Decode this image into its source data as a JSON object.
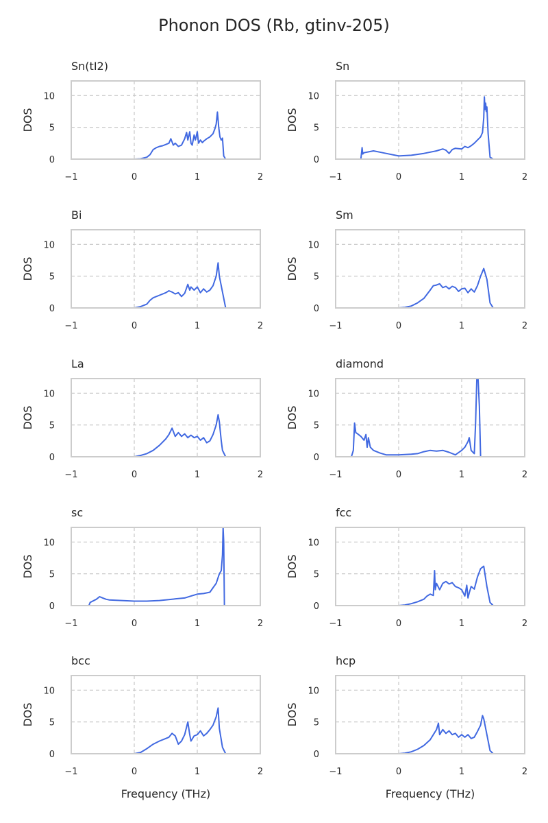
{
  "figure_title": "Phonon DOS (Rb, gtinv-205)",
  "colors": {
    "line": "#4169e1",
    "frame": "#cccccc",
    "grid": "#c8c8c8",
    "text": "#262626"
  },
  "chart_data": [
    {
      "type": "line",
      "title": "Sn(tI2)",
      "xlabel": "",
      "ylabel": "DOS",
      "xlim": [
        -1,
        2
      ],
      "ylim": [
        0,
        12.3
      ],
      "xticks": [
        -1,
        0,
        1,
        2
      ],
      "yticks": [
        0,
        5,
        10
      ],
      "grid": true,
      "x": [
        -0.9,
        0.0,
        0.1,
        0.2,
        0.25,
        0.3,
        0.35,
        0.4,
        0.45,
        0.5,
        0.55,
        0.58,
        0.62,
        0.65,
        0.7,
        0.75,
        0.8,
        0.83,
        0.85,
        0.88,
        0.9,
        0.92,
        0.95,
        0.97,
        1.0,
        1.02,
        1.05,
        1.08,
        1.1,
        1.15,
        1.2,
        1.25,
        1.28,
        1.3,
        1.32,
        1.34,
        1.36,
        1.38,
        1.4,
        1.42,
        1.45,
        1.5
      ],
      "y": [
        0,
        0,
        0.05,
        0.3,
        0.7,
        1.5,
        1.8,
        2.0,
        2.1,
        2.3,
        2.5,
        3.2,
        2.2,
        2.5,
        2.0,
        2.2,
        3.2,
        4.2,
        3.0,
        4.3,
        2.5,
        2.2,
        3.8,
        3.0,
        4.3,
        2.5,
        3.0,
        2.6,
        2.8,
        3.2,
        3.5,
        4.0,
        4.8,
        5.5,
        7.4,
        5.0,
        3.5,
        3.0,
        3.3,
        0.5,
        0,
        0
      ]
    },
    {
      "type": "line",
      "title": "Sn",
      "xlabel": "",
      "ylabel": "DOS",
      "xlim": [
        -1,
        2
      ],
      "ylim": [
        0,
        12.3
      ],
      "xticks": [
        -1,
        0,
        1,
        2
      ],
      "yticks": [
        0,
        5,
        10
      ],
      "grid": true,
      "x": [
        -0.6,
        -0.58,
        -0.57,
        -0.55,
        -0.4,
        -0.3,
        -0.2,
        0.0,
        0.2,
        0.4,
        0.6,
        0.7,
        0.75,
        0.8,
        0.85,
        0.9,
        1.0,
        1.05,
        1.1,
        1.15,
        1.2,
        1.25,
        1.3,
        1.33,
        1.35,
        1.36,
        1.37,
        1.38,
        1.39,
        1.4,
        1.42,
        1.45,
        1.5
      ],
      "y": [
        0,
        1.8,
        0.8,
        1.0,
        1.3,
        1.1,
        0.9,
        0.5,
        0.6,
        0.9,
        1.3,
        1.6,
        1.4,
        0.9,
        1.5,
        1.7,
        1.6,
        2.0,
        1.8,
        2.1,
        2.5,
        3.0,
        3.5,
        4.2,
        6.5,
        9.8,
        7.8,
        8.8,
        7.5,
        8.2,
        4.0,
        0.3,
        0
      ]
    },
    {
      "type": "line",
      "title": "Bi",
      "xlabel": "",
      "ylabel": "DOS",
      "xlim": [
        -1,
        2
      ],
      "ylim": [
        0,
        12.3
      ],
      "xticks": [
        -1,
        0,
        1,
        2
      ],
      "yticks": [
        0,
        5,
        10
      ],
      "grid": true,
      "x": [
        -0.1,
        0.0,
        0.1,
        0.2,
        0.25,
        0.3,
        0.4,
        0.5,
        0.55,
        0.6,
        0.65,
        0.7,
        0.75,
        0.8,
        0.85,
        0.88,
        0.9,
        0.95,
        1.0,
        1.05,
        1.1,
        1.15,
        1.2,
        1.25,
        1.3,
        1.33,
        1.35,
        1.4,
        1.45,
        1.5
      ],
      "y": [
        0,
        0,
        0.2,
        0.6,
        1.2,
        1.6,
        2.0,
        2.4,
        2.7,
        2.5,
        2.2,
        2.4,
        1.8,
        2.3,
        3.7,
        2.8,
        3.3,
        2.8,
        3.3,
        2.4,
        3.0,
        2.5,
        2.8,
        3.5,
        5.0,
        7.1,
        5.0,
        2.5,
        0,
        0
      ]
    },
    {
      "type": "line",
      "title": "Sm",
      "xlabel": "",
      "ylabel": "DOS",
      "xlim": [
        -1,
        2
      ],
      "ylim": [
        0,
        12.3
      ],
      "xticks": [
        -1,
        0,
        1,
        2
      ],
      "yticks": [
        0,
        5,
        10
      ],
      "grid": true,
      "x": [
        0.0,
        0.1,
        0.2,
        0.3,
        0.4,
        0.5,
        0.55,
        0.6,
        0.65,
        0.7,
        0.75,
        0.8,
        0.85,
        0.9,
        0.95,
        1.0,
        1.05,
        1.1,
        1.15,
        1.2,
        1.25,
        1.3,
        1.35,
        1.4,
        1.45,
        1.5
      ],
      "y": [
        0,
        0.1,
        0.3,
        0.8,
        1.5,
        2.8,
        3.5,
        3.6,
        3.8,
        3.2,
        3.4,
        3.0,
        3.4,
        3.2,
        2.6,
        3.0,
        3.1,
        2.4,
        3.0,
        2.5,
        3.5,
        5.0,
        6.2,
        4.5,
        0.8,
        0
      ]
    },
    {
      "type": "line",
      "title": "La",
      "xlabel": "",
      "ylabel": "DOS",
      "xlim": [
        -1,
        2
      ],
      "ylim": [
        0,
        12.3
      ],
      "xticks": [
        -1,
        0,
        1,
        2
      ],
      "yticks": [
        0,
        5,
        10
      ],
      "grid": true,
      "x": [
        -0.05,
        0.0,
        0.1,
        0.2,
        0.3,
        0.4,
        0.5,
        0.55,
        0.6,
        0.65,
        0.7,
        0.75,
        0.8,
        0.85,
        0.9,
        0.95,
        1.0,
        1.05,
        1.1,
        1.15,
        1.2,
        1.25,
        1.3,
        1.33,
        1.35,
        1.38,
        1.4,
        1.45,
        1.5
      ],
      "y": [
        0,
        0,
        0.2,
        0.5,
        1.0,
        1.8,
        2.8,
        3.5,
        4.5,
        3.2,
        3.8,
        3.2,
        3.6,
        3.0,
        3.4,
        3.0,
        3.2,
        2.6,
        3.0,
        2.2,
        2.5,
        3.5,
        5.0,
        6.6,
        5.5,
        2.5,
        1.0,
        0,
        0
      ]
    },
    {
      "type": "line",
      "title": "diamond",
      "xlabel": "",
      "ylabel": "DOS",
      "xlim": [
        -1,
        2
      ],
      "ylim": [
        0,
        12.3
      ],
      "xticks": [
        -1,
        0,
        1,
        2
      ],
      "yticks": [
        0,
        5,
        10
      ],
      "grid": true,
      "x": [
        -0.9,
        -0.75,
        -0.72,
        -0.7,
        -0.68,
        -0.65,
        -0.6,
        -0.55,
        -0.52,
        -0.5,
        -0.48,
        -0.45,
        -0.4,
        -0.3,
        -0.2,
        0.0,
        0.2,
        0.3,
        0.4,
        0.5,
        0.6,
        0.7,
        0.8,
        0.9,
        1.0,
        1.05,
        1.1,
        1.12,
        1.15,
        1.2,
        1.22,
        1.24,
        1.26,
        1.28,
        1.3,
        1.5
      ],
      "y": [
        0,
        0,
        1.0,
        5.3,
        3.8,
        3.6,
        3.2,
        2.6,
        3.5,
        1.5,
        3.0,
        1.5,
        1.0,
        0.6,
        0.3,
        0.3,
        0.4,
        0.5,
        0.8,
        1.0,
        0.9,
        1.0,
        0.7,
        0.3,
        1.0,
        1.5,
        2.4,
        3.0,
        1.0,
        0.5,
        5.0,
        12.3,
        12.3,
        8.0,
        0,
        0
      ]
    },
    {
      "type": "line",
      "title": "sc",
      "xlabel": "",
      "ylabel": "DOS",
      "xlim": [
        -1,
        2
      ],
      "ylim": [
        0,
        12.3
      ],
      "xticks": [
        -1,
        0,
        1,
        2
      ],
      "yticks": [
        0,
        5,
        10
      ],
      "grid": true,
      "x": [
        -0.72,
        -0.7,
        -0.6,
        -0.55,
        -0.5,
        -0.45,
        -0.4,
        -0.2,
        0.0,
        0.2,
        0.4,
        0.6,
        0.8,
        0.9,
        1.0,
        1.1,
        1.2,
        1.25,
        1.3,
        1.35,
        1.38,
        1.4,
        1.41,
        1.42,
        1.43,
        1.45,
        1.5
      ],
      "y": [
        0,
        0.5,
        1.0,
        1.4,
        1.2,
        1.0,
        0.9,
        0.8,
        0.7,
        0.7,
        0.8,
        1.0,
        1.2,
        1.5,
        1.8,
        1.9,
        2.1,
        2.8,
        3.5,
        5.0,
        5.5,
        8.0,
        12.3,
        10.0,
        0,
        0,
        0
      ]
    },
    {
      "type": "line",
      "title": "fcc",
      "xlabel": "",
      "ylabel": "DOS",
      "xlim": [
        -1,
        2
      ],
      "ylim": [
        0,
        12.3
      ],
      "xticks": [
        -1,
        0,
        1,
        2
      ],
      "yticks": [
        0,
        5,
        10
      ],
      "grid": true,
      "x": [
        0.0,
        0.1,
        0.2,
        0.3,
        0.4,
        0.45,
        0.5,
        0.55,
        0.57,
        0.58,
        0.6,
        0.65,
        0.7,
        0.75,
        0.8,
        0.85,
        0.9,
        0.95,
        1.0,
        1.05,
        1.08,
        1.1,
        1.12,
        1.15,
        1.2,
        1.25,
        1.3,
        1.35,
        1.4,
        1.45,
        1.5
      ],
      "y": [
        0,
        0.1,
        0.3,
        0.6,
        1.0,
        1.5,
        1.8,
        1.6,
        5.5,
        2.5,
        3.5,
        2.5,
        3.5,
        3.8,
        3.4,
        3.6,
        3.0,
        2.8,
        2.5,
        1.5,
        3.2,
        1.2,
        2.0,
        3.0,
        2.6,
        4.5,
        5.8,
        6.2,
        3.0,
        0.5,
        0
      ]
    },
    {
      "type": "line",
      "title": "bcc",
      "xlabel": "Frequency (THz)",
      "ylabel": "DOS",
      "xlim": [
        -1,
        2
      ],
      "ylim": [
        0,
        12.3
      ],
      "xticks": [
        -1,
        0,
        1,
        2
      ],
      "yticks": [
        0,
        5,
        10
      ],
      "grid": true,
      "x": [
        -0.1,
        0.0,
        0.1,
        0.2,
        0.3,
        0.4,
        0.5,
        0.55,
        0.6,
        0.65,
        0.7,
        0.75,
        0.8,
        0.85,
        0.88,
        0.9,
        0.95,
        1.0,
        1.05,
        1.1,
        1.15,
        1.2,
        1.25,
        1.3,
        1.33,
        1.35,
        1.4,
        1.45,
        1.5
      ],
      "y": [
        0,
        0,
        0.2,
        0.8,
        1.5,
        2.0,
        2.4,
        2.6,
        3.2,
        2.8,
        1.5,
        2.0,
        3.0,
        5.0,
        3.0,
        2.0,
        2.8,
        3.0,
        3.6,
        2.8,
        3.2,
        3.8,
        4.5,
        5.8,
        7.2,
        4.0,
        1.0,
        0,
        0
      ]
    },
    {
      "type": "line",
      "title": "hcp",
      "xlabel": "Frequency (THz)",
      "ylabel": "DOS",
      "xlim": [
        -1,
        2
      ],
      "ylim": [
        0,
        12.3
      ],
      "xticks": [
        -1,
        0,
        1,
        2
      ],
      "yticks": [
        0,
        5,
        10
      ],
      "grid": true,
      "x": [
        -0.05,
        0.0,
        0.1,
        0.2,
        0.3,
        0.4,
        0.5,
        0.55,
        0.6,
        0.63,
        0.65,
        0.7,
        0.75,
        0.8,
        0.85,
        0.9,
        0.95,
        1.0,
        1.05,
        1.1,
        1.15,
        1.2,
        1.25,
        1.3,
        1.33,
        1.35,
        1.4,
        1.45,
        1.5
      ],
      "y": [
        0,
        0,
        0.1,
        0.3,
        0.7,
        1.3,
        2.2,
        3.0,
        3.8,
        4.8,
        3.0,
        3.8,
        3.2,
        3.6,
        3.0,
        3.2,
        2.6,
        3.0,
        2.6,
        3.0,
        2.4,
        2.6,
        3.5,
        4.5,
        6.0,
        5.5,
        3.0,
        0.5,
        0
      ]
    }
  ]
}
